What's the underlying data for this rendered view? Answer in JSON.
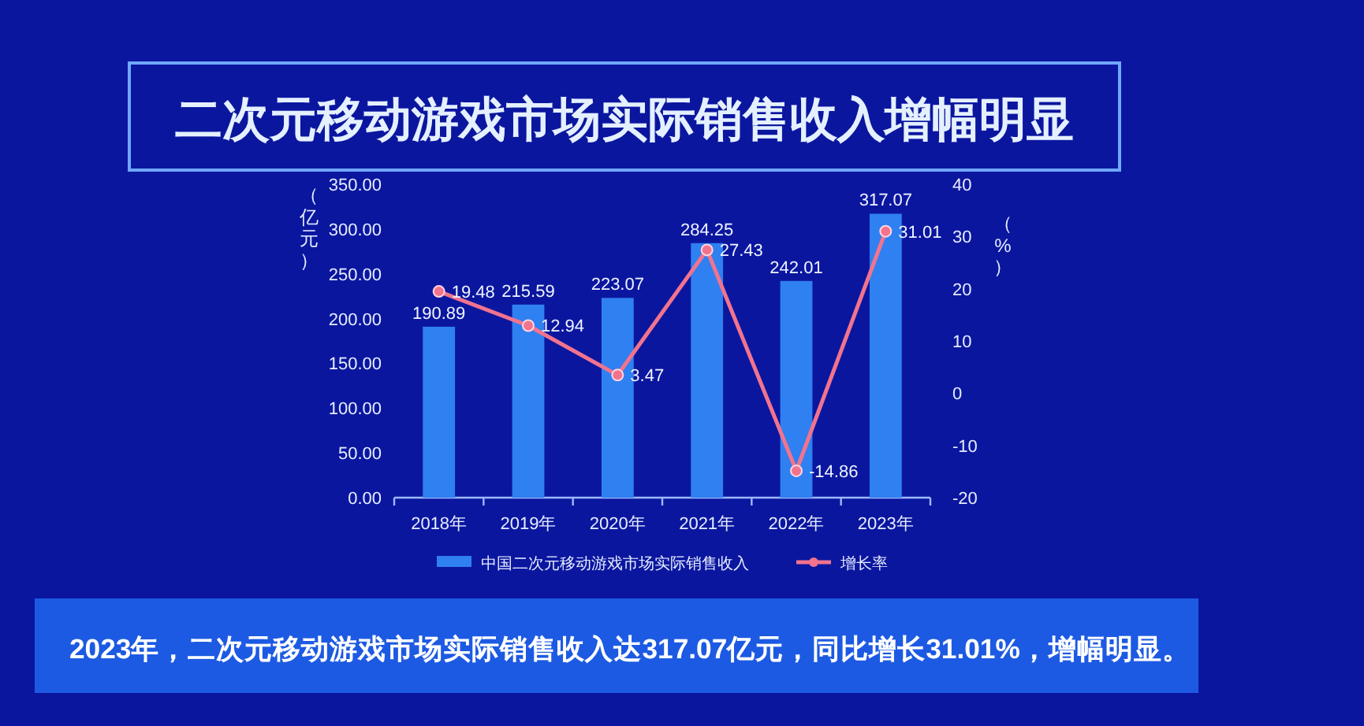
{
  "chart_data": {
    "type": "bar",
    "title": "二次元移动游戏市场实际销售收入增幅明显",
    "categories": [
      "2018年",
      "2019年",
      "2020年",
      "2021年",
      "2022年",
      "2023年"
    ],
    "series": [
      {
        "name": "中国二次元移动游戏市场实际销售收入",
        "color": "#2f80f0",
        "values": [
          190.89,
          215.59,
          223.07,
          284.25,
          242.01,
          317.07
        ]
      },
      {
        "name": "增长率",
        "type": "line",
        "axis": "y2",
        "color": "#f2738e",
        "values": [
          19.48,
          12.94,
          3.47,
          27.43,
          -14.86,
          31.01
        ]
      }
    ],
    "ylabel": "（亿元）",
    "y2label": "（%）",
    "ylim": [
      0,
      350
    ],
    "yticks": [
      {
        "value": 0,
        "label": "0.00"
      },
      {
        "value": 50,
        "label": "50.00"
      },
      {
        "value": 100,
        "label": "100.00"
      },
      {
        "value": 150,
        "label": "150.00"
      },
      {
        "value": 200,
        "label": "200.00"
      },
      {
        "value": 250,
        "label": "250.00"
      },
      {
        "value": 300,
        "label": "300.00"
      },
      {
        "value": 350,
        "label": "350.00"
      }
    ],
    "y2lim": [
      -20,
      40
    ],
    "y2ticks": [
      -20,
      -10,
      0,
      10,
      20,
      30,
      40
    ],
    "data_labels": true,
    "legend": "bottom",
    "marker": "circle",
    "annotations": [
      "2023年，二次元移动游戏市场实际销售收入达317.07亿元，同比增长31.01%，增幅明显。"
    ]
  }
}
